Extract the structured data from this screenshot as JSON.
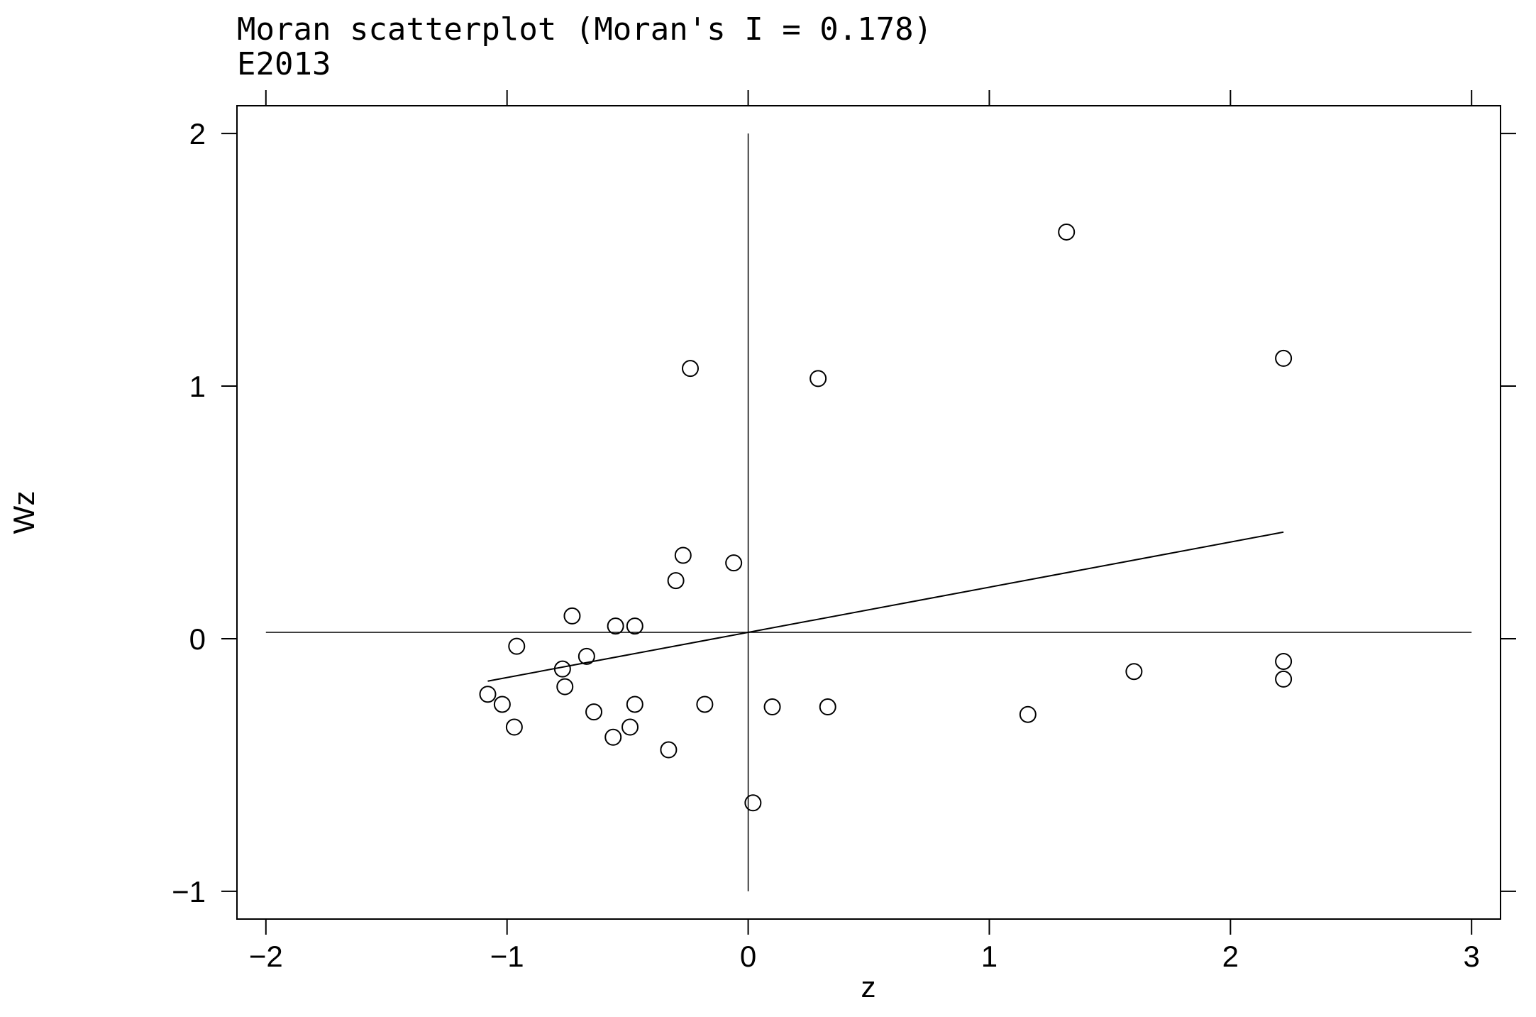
{
  "chart_data": {
    "type": "scatter",
    "title": "Moran scatterplot (Moran's I = 0.178)",
    "subtitle": "E2013",
    "xlabel": "z",
    "ylabel": "Wz",
    "xlim": [
      -2.12,
      3.12
    ],
    "ylim": [
      -1.11,
      2.11
    ],
    "xticks": [
      -2,
      -1,
      0,
      1,
      2,
      3
    ],
    "yticks": [
      -1,
      0,
      1,
      2
    ],
    "xtick_labels": [
      "−2",
      "−1",
      "0",
      "1",
      "2",
      "3"
    ],
    "ytick_labels": [
      "−1",
      "0",
      "1",
      "2"
    ],
    "grid": false,
    "reference_lines": {
      "x": 0.0,
      "y": 0.025,
      "x_extent": [
        -2,
        3
      ],
      "y_extent": [
        -1,
        2
      ]
    },
    "fit_line": {
      "x": [
        -1.08,
        2.22
      ],
      "y": [
        -0.168,
        0.422
      ]
    },
    "points": [
      {
        "x": 1.32,
        "y": 1.61
      },
      {
        "x": -0.24,
        "y": 1.07
      },
      {
        "x": 0.29,
        "y": 1.03
      },
      {
        "x": 2.22,
        "y": 1.11
      },
      {
        "x": -0.27,
        "y": 0.33
      },
      {
        "x": -0.06,
        "y": 0.3
      },
      {
        "x": -0.3,
        "y": 0.23
      },
      {
        "x": -0.73,
        "y": 0.09
      },
      {
        "x": -0.55,
        "y": 0.05
      },
      {
        "x": -0.47,
        "y": 0.05
      },
      {
        "x": -0.96,
        "y": -0.03
      },
      {
        "x": -0.67,
        "y": -0.07
      },
      {
        "x": -0.77,
        "y": -0.12
      },
      {
        "x": -0.76,
        "y": -0.19
      },
      {
        "x": -1.08,
        "y": -0.22
      },
      {
        "x": -1.02,
        "y": -0.26
      },
      {
        "x": -0.97,
        "y": -0.35
      },
      {
        "x": -0.64,
        "y": -0.29
      },
      {
        "x": -0.56,
        "y": -0.39
      },
      {
        "x": -0.49,
        "y": -0.35
      },
      {
        "x": -0.47,
        "y": -0.26
      },
      {
        "x": -0.33,
        "y": -0.44
      },
      {
        "x": -0.18,
        "y": -0.26
      },
      {
        "x": 0.1,
        "y": -0.27
      },
      {
        "x": 0.33,
        "y": -0.27
      },
      {
        "x": 0.02,
        "y": -0.65
      },
      {
        "x": 1.16,
        "y": -0.3
      },
      {
        "x": 1.6,
        "y": -0.13
      },
      {
        "x": 2.22,
        "y": -0.09
      },
      {
        "x": 2.22,
        "y": -0.16
      }
    ]
  }
}
